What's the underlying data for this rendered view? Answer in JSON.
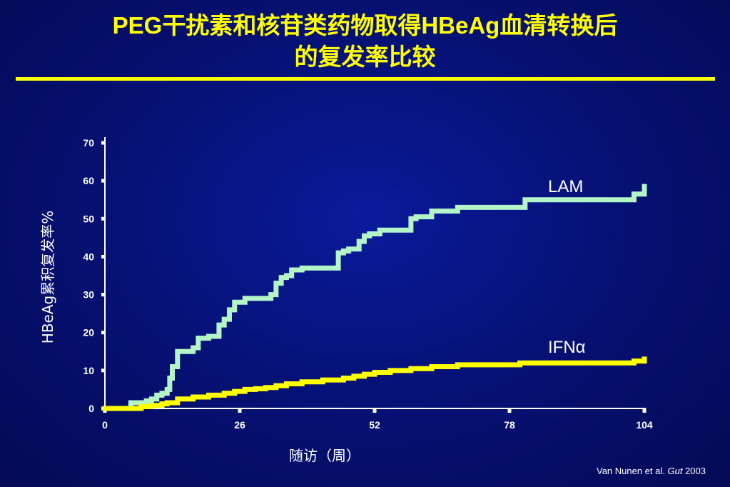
{
  "header": {
    "title_line1": "PEG干扰素和核苷类药物取得HBeAg血清转换后",
    "title_line2": "的复发率比较"
  },
  "citation": {
    "authors": "Van Nunen et al. ",
    "journal": "Gut",
    "year": " 2003"
  },
  "colors": {
    "lam": "#b4f5c8",
    "ifn": "#ffff00",
    "axis": "#ffffff",
    "title": "#ffff00"
  },
  "chart_data": {
    "type": "line",
    "xlabel": "随访（周）",
    "ylabel": "HBeAg累积复发率%",
    "xlim": [
      0,
      104
    ],
    "ylim": [
      0,
      70
    ],
    "xticks": [
      0,
      26,
      52,
      78,
      104
    ],
    "yticks": [
      0,
      10,
      20,
      30,
      40,
      50,
      60,
      70
    ],
    "grid": false,
    "legend": "inline labels at right end of lines",
    "series": [
      {
        "name": "LAM",
        "step": true,
        "x": [
          0,
          4,
          5,
          7,
          8,
          9,
          10,
          11,
          12,
          12.5,
          13,
          14,
          15,
          17,
          18,
          20,
          22,
          23,
          24,
          25,
          27,
          31,
          32,
          33,
          34,
          35,
          36,
          38,
          40,
          45,
          46,
          47,
          49,
          50,
          51,
          53,
          55,
          59,
          60,
          63,
          68,
          80,
          81,
          101,
          102,
          104
        ],
        "y": [
          0,
          0,
          1.5,
          1.5,
          2,
          2.5,
          3.5,
          4,
          5,
          8,
          11,
          15,
          15,
          16,
          18.5,
          19,
          22,
          23.5,
          26,
          28,
          29,
          29,
          30,
          33,
          34.5,
          35,
          36.5,
          37,
          37,
          41,
          41.5,
          42,
          44,
          45.5,
          46,
          47,
          47,
          50,
          50.5,
          52,
          53,
          53,
          55,
          55,
          56.5,
          58.5
        ]
      },
      {
        "name": "IFNα",
        "step": true,
        "x": [
          0,
          5,
          7,
          9,
          11,
          12,
          14,
          15,
          17,
          20,
          23,
          25,
          27,
          29,
          31,
          33,
          35,
          38,
          42,
          46,
          48,
          50,
          52,
          55,
          59,
          63,
          68,
          80,
          102,
          104
        ],
        "y": [
          0,
          0,
          0.5,
          0.8,
          1.2,
          1.5,
          2.5,
          2.5,
          3,
          3.5,
          4,
          4.5,
          5,
          5.2,
          5.5,
          6,
          6.5,
          7,
          7.5,
          8,
          8.5,
          9,
          9.5,
          10,
          10.5,
          11,
          11.5,
          12,
          12.5,
          13
        ]
      }
    ]
  }
}
